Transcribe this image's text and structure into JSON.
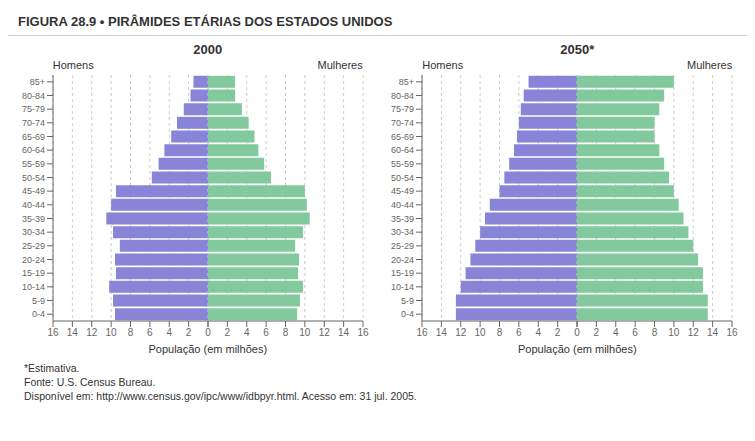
{
  "title": "FIGURA 28.9 • PIRÂMIDES ETÁRIAS DOS ESTADOS UNIDOS",
  "annotations": [
    "*Estimativa.",
    "Fonte: U.S. Census Bureau.",
    "Disponível em: http://www.census.gov/ipc/www/idbpyr.html. Acesso em: 31 jul. 2005."
  ],
  "chart_data": [
    {
      "type": "bar",
      "orientation": "horizontal",
      "title": "2000",
      "xlabel": "População (em milhões)",
      "categories": [
        "0-4",
        "5-9",
        "10-14",
        "15-19",
        "20-24",
        "25-29",
        "30-34",
        "35-39",
        "40-44",
        "45-49",
        "50-54",
        "55-59",
        "60-64",
        "65-69",
        "70-74",
        "75-79",
        "80-84",
        "85+"
      ],
      "series": [
        {
          "name": "Homens",
          "color": "#8884d8",
          "values": [
            9.6,
            9.8,
            10.2,
            9.5,
            9.6,
            9.1,
            9.8,
            10.5,
            10.0,
            9.5,
            5.8,
            5.1,
            4.5,
            3.8,
            3.2,
            2.5,
            1.8,
            1.5
          ]
        },
        {
          "name": "Mulheres",
          "color": "#82ca9d",
          "values": [
            9.2,
            9.5,
            9.8,
            9.3,
            9.4,
            9.0,
            9.8,
            10.5,
            10.2,
            10.0,
            6.5,
            5.8,
            5.2,
            4.8,
            4.2,
            3.5,
            2.8,
            2.8
          ]
        }
      ],
      "xlim": [
        0,
        16
      ],
      "xticks": [
        0,
        2,
        4,
        6,
        8,
        10,
        12,
        14,
        16
      ],
      "grid": true
    },
    {
      "type": "bar",
      "orientation": "horizontal",
      "title": "2050*",
      "xlabel": "População (em milhões)",
      "categories": [
        "0-4",
        "5-9",
        "10-14",
        "15-19",
        "20-24",
        "25-29",
        "30-34",
        "35-39",
        "40-44",
        "45-49",
        "50-54",
        "55-59",
        "60-64",
        "65-69",
        "70-74",
        "75-79",
        "80-84",
        "85+"
      ],
      "series": [
        {
          "name": "Homens",
          "color": "#8884d8",
          "values": [
            12.5,
            12.5,
            12.0,
            11.5,
            11.0,
            10.5,
            10.0,
            9.5,
            9.0,
            8.0,
            7.5,
            7.0,
            6.5,
            6.2,
            6.0,
            5.8,
            5.5,
            5.0
          ]
        },
        {
          "name": "Mulheres",
          "color": "#82ca9d",
          "values": [
            13.5,
            13.5,
            13.0,
            13.0,
            12.5,
            12.0,
            11.5,
            11.0,
            10.5,
            10.0,
            9.5,
            9.0,
            8.5,
            8.0,
            8.0,
            8.5,
            9.0,
            10.0
          ]
        }
      ],
      "xlim": [
        0,
        16
      ],
      "xticks": [
        0,
        2,
        4,
        6,
        8,
        10,
        12,
        14,
        16
      ],
      "grid": true
    }
  ]
}
